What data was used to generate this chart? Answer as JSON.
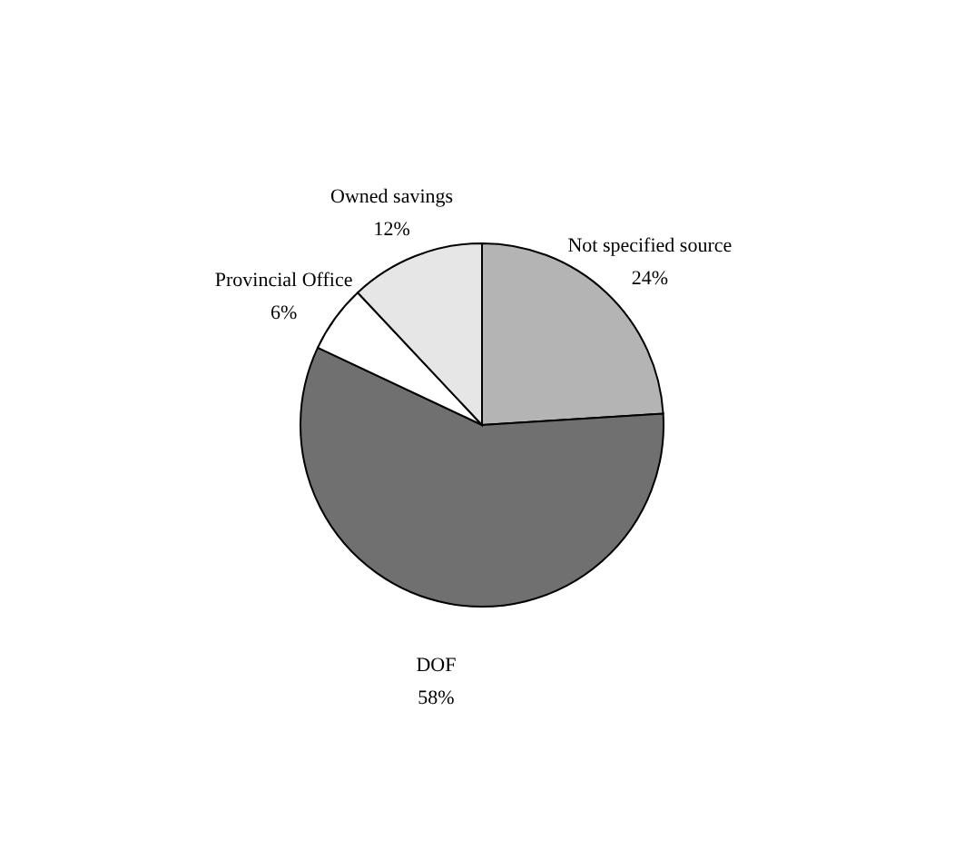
{
  "chart_data": {
    "type": "pie",
    "categories": [
      "Not specified source",
      "DOF",
      "Provincial Office",
      "Owned savings"
    ],
    "values": [
      24,
      58,
      6,
      12
    ],
    "value_labels": [
      "24%",
      "58%",
      "6%",
      "12%"
    ],
    "colors": [
      "#b4b4b4",
      "#707070",
      "#ffffff",
      "#e6e6e6"
    ],
    "legend": false
  }
}
